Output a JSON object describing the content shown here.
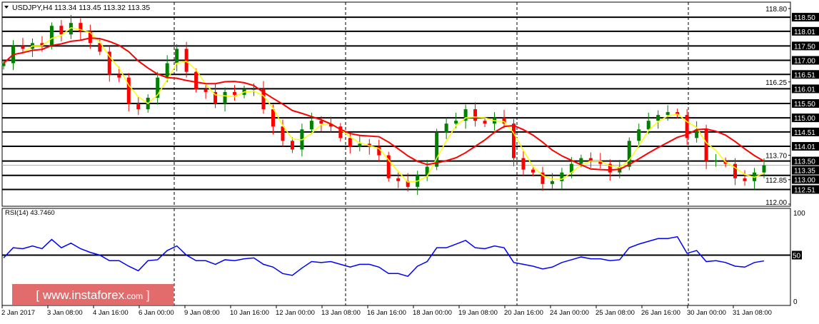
{
  "header": {
    "symbol": "USDJPY,H4",
    "ohlc": "113.34 113.45 113.32 113.35"
  },
  "rsi_label": "RSI(14) 43.7460",
  "watermark": {
    "text": "[ www.instaforex.com ]",
    "bracket_open": "[",
    "domain": "www.instaforex",
    "tld": ".com",
    "bracket_close": "]"
  },
  "colors": {
    "bull": "#008000",
    "bear": "#ff0000",
    "fast_ma": "#ffff00",
    "slow_ma": "#ff0000",
    "rsi": "#0000ff",
    "tag_bg": "#000000",
    "watermark_bg": "#e06060"
  },
  "chart_data": [
    {
      "type": "candlestick",
      "symbol": "USDJPY",
      "timeframe": "H4",
      "ylim": [
        112.0,
        118.8
      ],
      "price_ticks": [
        "118.80",
        "116.25",
        "113.70",
        "112.85",
        "112.00"
      ],
      "level_tags": [
        "118.50",
        "118.01",
        "117.50",
        "117.00",
        "116.51",
        "116.01",
        "115.50",
        "115.00",
        "114.51",
        "114.01",
        "113.50",
        "113.35",
        "113.00",
        "112.51"
      ],
      "current_price": "113.35",
      "x_labels": [
        "2 Jan 2017",
        "3 Jan 08:00",
        "4 Jan 16:00",
        "6 Jan 00:00",
        "9 Jan 08:00",
        "10 Jan 16:00",
        "12 Jan 00:00",
        "13 Jan 08:00",
        "16 Jan 16:00",
        "18 Jan 00:00",
        "19 Jan 08:00",
        "20 Jan 16:00",
        "24 Jan 00:00",
        "25 Jan 08:00",
        "26 Jan 16:00",
        "30 Jan 00:00",
        "31 Jan 08:00"
      ],
      "closes": [
        116.9,
        117.5,
        117.4,
        117.6,
        117.5,
        118.2,
        117.9,
        118.3,
        118.0,
        117.6,
        117.3,
        116.5,
        116.4,
        115.5,
        115.3,
        115.7,
        116.4,
        116.9,
        117.4,
        116.6,
        116.0,
        115.9,
        115.5,
        115.9,
        115.8,
        116.0,
        116.0,
        115.3,
        114.7,
        114.2,
        113.9,
        114.6,
        114.9,
        114.8,
        114.7,
        114.3,
        114.0,
        114.1,
        114.0,
        113.7,
        112.9,
        112.8,
        112.6,
        113.0,
        113.3,
        114.5,
        114.8,
        114.9,
        115.3,
        114.9,
        114.8,
        115.0,
        114.8,
        113.6,
        113.2,
        113.1,
        112.7,
        112.8,
        113.1,
        113.4,
        113.6,
        113.5,
        113.4,
        113.1,
        113.3,
        114.2,
        114.6,
        114.9,
        115.1,
        115.2,
        115.1,
        114.3,
        114.6,
        113.5,
        113.5,
        113.4,
        112.9,
        112.8,
        113.1,
        113.35
      ],
      "moving_averages": [
        {
          "color": "#ffff00"
        },
        {
          "color": "#ff0000"
        }
      ],
      "grid": false
    },
    {
      "type": "line",
      "indicator": "RSI(14)",
      "ylim": [
        0,
        100
      ],
      "y_ticks": [
        "100",
        "50",
        "0"
      ],
      "level": 50,
      "values": [
        47,
        58,
        57,
        60,
        57,
        67,
        58,
        63,
        57,
        53,
        50,
        44,
        44,
        38,
        33,
        44,
        45,
        55,
        60,
        50,
        44,
        44,
        40,
        45,
        44,
        46,
        47,
        40,
        37,
        30,
        28,
        36,
        43,
        42,
        43,
        40,
        37,
        40,
        40,
        37,
        30,
        30,
        27,
        38,
        43,
        58,
        58,
        62,
        66,
        58,
        57,
        60,
        58,
        42,
        40,
        38,
        35,
        37,
        42,
        45,
        48,
        46,
        46,
        44,
        45,
        58,
        62,
        65,
        68,
        68,
        70,
        52,
        55,
        43,
        44,
        42,
        38,
        37,
        42,
        43.746
      ]
    }
  ]
}
